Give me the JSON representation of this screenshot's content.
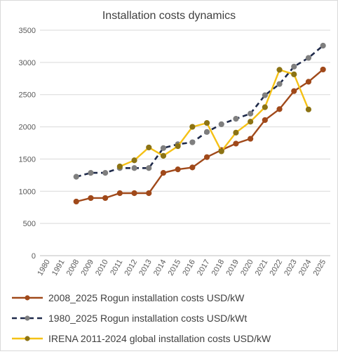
{
  "chart_data": {
    "type": "line",
    "title": "Installation costs dynamics",
    "xlabel": "",
    "ylabel": "",
    "categories": [
      "1980",
      "1991",
      "2008",
      "2009",
      "2010",
      "2011",
      "2012",
      "2013",
      "2014",
      "2015",
      "2016",
      "2017",
      "2018",
      "2019",
      "2020",
      "2021",
      "2022",
      "2023",
      "2024",
      "2025"
    ],
    "ylim": [
      0,
      3500
    ],
    "yticks": [
      0,
      500,
      1000,
      1500,
      2000,
      2500,
      3000,
      3500
    ],
    "grid": true,
    "legend_position": "bottom",
    "series": [
      {
        "name": "2008_2025 Rogun installation costs USD/kW",
        "color": "#a0491a",
        "marker_color": "#a0491a",
        "dash": false,
        "values": [
          null,
          null,
          840,
          895,
          895,
          970,
          970,
          970,
          1285,
          1340,
          1370,
          1530,
          1640,
          1740,
          1815,
          2105,
          2275,
          2555,
          2700,
          2890
        ]
      },
      {
        "name": "1980_2025 Rogun installation costs USD/kWt",
        "color": "#1f2a4a",
        "marker_color": "#7f7f7f",
        "dash": true,
        "values": [
          null,
          null,
          1225,
          1285,
          1285,
          1360,
          1360,
          1360,
          1670,
          1730,
          1760,
          1920,
          2040,
          2125,
          2205,
          2490,
          2665,
          2935,
          3070,
          3260
        ]
      },
      {
        "name": "IRENA 2011-2024 global installation costs USD/kW",
        "color": "#f5c116",
        "marker_color": "#8c7314",
        "dash": false,
        "values": [
          null,
          null,
          null,
          null,
          null,
          1385,
          1480,
          1680,
          1550,
          1700,
          2000,
          2060,
          1620,
          1910,
          2080,
          2305,
          2885,
          2815,
          2270,
          null
        ]
      }
    ]
  }
}
